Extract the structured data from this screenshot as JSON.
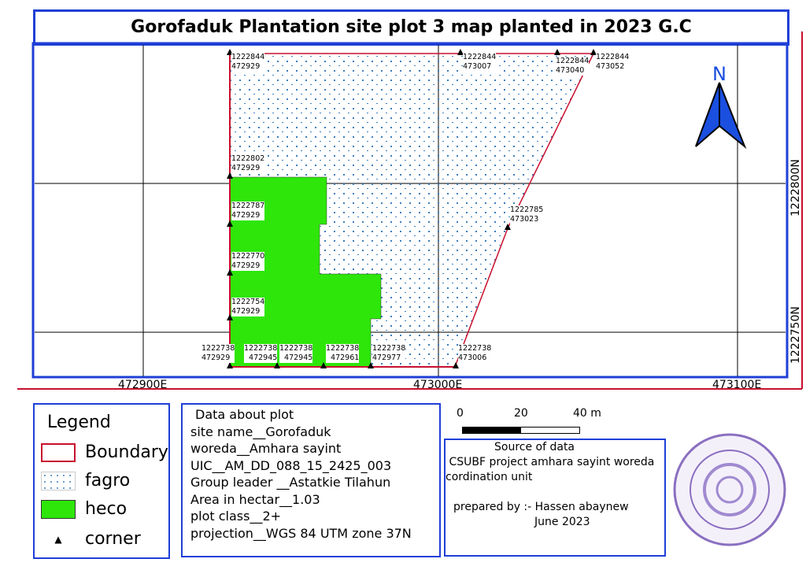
{
  "title": "Gorofaduk Plantation site plot 3 map planted in 2023 G.C",
  "colors": {
    "frame": "#1f3fd6",
    "boundary": "#c8102e",
    "fagro_dots": "#3a7fc0",
    "heco": "#2ee60a",
    "north_arrow": "#1a4fe0",
    "stamp": "#8a6fc0"
  },
  "north_label": "N",
  "grid_labels": {
    "x": [
      "472900E",
      "473000E",
      "473100E"
    ],
    "y": [
      "1222800N",
      "1222750N"
    ]
  },
  "corners": [
    {
      "n": "1222844",
      "e": "472929"
    },
    {
      "n": "1222844",
      "e": "473007"
    },
    {
      "n": "1222844",
      "e": "473040"
    },
    {
      "n": "1222844",
      "e": "473052"
    },
    {
      "n": "1222802",
      "e": "472929"
    },
    {
      "n": "1222787",
      "e": "472929"
    },
    {
      "n": "1222785",
      "e": "473023"
    },
    {
      "n": "1222770",
      "e": "472929"
    },
    {
      "n": "1222754",
      "e": "472929"
    },
    {
      "n": "1222738",
      "e": "472929"
    },
    {
      "n": "1222738",
      "e": "472945"
    },
    {
      "n": "1222738",
      "e": "472945"
    },
    {
      "n": "1222738",
      "e": "472961"
    },
    {
      "n": "1222738",
      "e": "472977"
    },
    {
      "n": "1222738",
      "e": "473006"
    }
  ],
  "legend": {
    "title": "Legend",
    "items": [
      {
        "label": "Boundary",
        "icon": "boundary-swatch"
      },
      {
        "label": "fagro",
        "icon": "dotted-swatch"
      },
      {
        "label": "heco",
        "icon": "green-swatch"
      },
      {
        "label": "corner",
        "icon": "triangle-icon"
      }
    ]
  },
  "info": {
    "lines": [
      "Data about plot",
      "site name__Gorofaduk",
      "woreda__Amhara sayint",
      "UIC__AM_DD_088_15_2425_003",
      "Group leader __Astatkie Tilahun",
      "Area in hectar__1.03",
      "plot class__2+",
      "projection__WGS 84 UTM zone 37N"
    ]
  },
  "scalebar": {
    "ticks": [
      "0",
      "20",
      "40 m"
    ]
  },
  "source": {
    "lines": [
      "Source of data",
      " CSUBF project amhara sayint woreda",
      "cordination unit",
      "",
      "prepared by :- Hassen abaynew",
      "June 2023"
    ]
  }
}
